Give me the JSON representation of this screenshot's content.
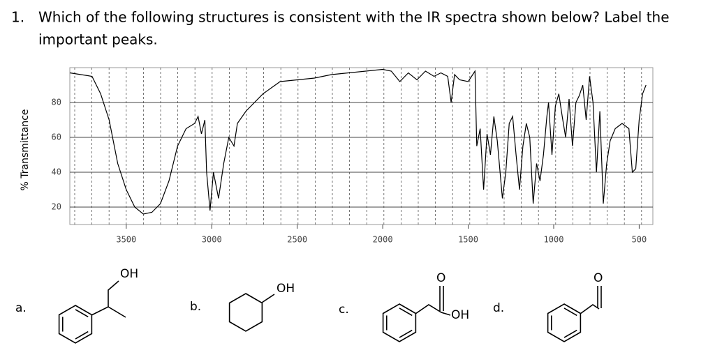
{
  "question": {
    "number": "1.",
    "lines": [
      "Which of the following structures is consistent with the IR spectra shown below? Label the",
      "important peaks."
    ]
  },
  "chart_data": {
    "type": "line",
    "ylabel": "% Transmittance",
    "color": "#000000",
    "grid": true,
    "xlim": [
      3830,
      420
    ],
    "ylim": [
      10,
      100
    ],
    "xticks": [
      3500,
      3000,
      2500,
      2000,
      1500,
      1000,
      500
    ],
    "yticks": [
      20,
      40,
      60,
      80
    ],
    "x": [
      3830,
      3700,
      3650,
      3600,
      3550,
      3500,
      3450,
      3400,
      3350,
      3300,
      3250,
      3200,
      3150,
      3100,
      3080,
      3060,
      3040,
      3030,
      3010,
      2990,
      2960,
      2930,
      2900,
      2870,
      2850,
      2800,
      2700,
      2600,
      2500,
      2400,
      2300,
      2200,
      2000,
      1950,
      1900,
      1850,
      1800,
      1750,
      1700,
      1660,
      1620,
      1600,
      1580,
      1550,
      1500,
      1480,
      1460,
      1450,
      1430,
      1410,
      1390,
      1370,
      1350,
      1330,
      1300,
      1280,
      1260,
      1240,
      1220,
      1200,
      1180,
      1160,
      1140,
      1120,
      1100,
      1080,
      1060,
      1040,
      1030,
      1010,
      990,
      970,
      950,
      930,
      910,
      890,
      870,
      850,
      830,
      810,
      790,
      770,
      750,
      730,
      710,
      690,
      670,
      640,
      600,
      560,
      540,
      520,
      500,
      480,
      460
    ],
    "values": [
      97,
      95,
      85,
      70,
      45,
      30,
      20,
      16,
      17,
      22,
      35,
      55,
      65,
      68,
      72,
      62,
      70,
      40,
      18,
      40,
      25,
      45,
      60,
      55,
      68,
      75,
      85,
      92,
      93,
      94,
      96,
      97,
      99,
      98,
      92,
      97,
      93,
      98,
      95,
      97,
      95,
      80,
      96,
      93,
      92,
      95,
      98,
      55,
      65,
      30,
      62,
      50,
      72,
      58,
      25,
      40,
      68,
      72,
      50,
      30,
      55,
      68,
      60,
      22,
      45,
      35,
      50,
      72,
      80,
      50,
      78,
      85,
      72,
      60,
      82,
      55,
      80,
      84,
      90,
      70,
      95,
      80,
      40,
      75,
      22,
      45,
      58,
      65,
      68,
      65,
      40,
      42,
      70,
      85,
      90
    ]
  },
  "options": [
    {
      "label": "a.",
      "groups": [
        "OH"
      ]
    },
    {
      "label": "b.",
      "groups": [
        "OH"
      ]
    },
    {
      "label": "c.",
      "groups": [
        "O",
        "OH"
      ]
    },
    {
      "label": "d.",
      "groups": [
        "O"
      ]
    }
  ]
}
